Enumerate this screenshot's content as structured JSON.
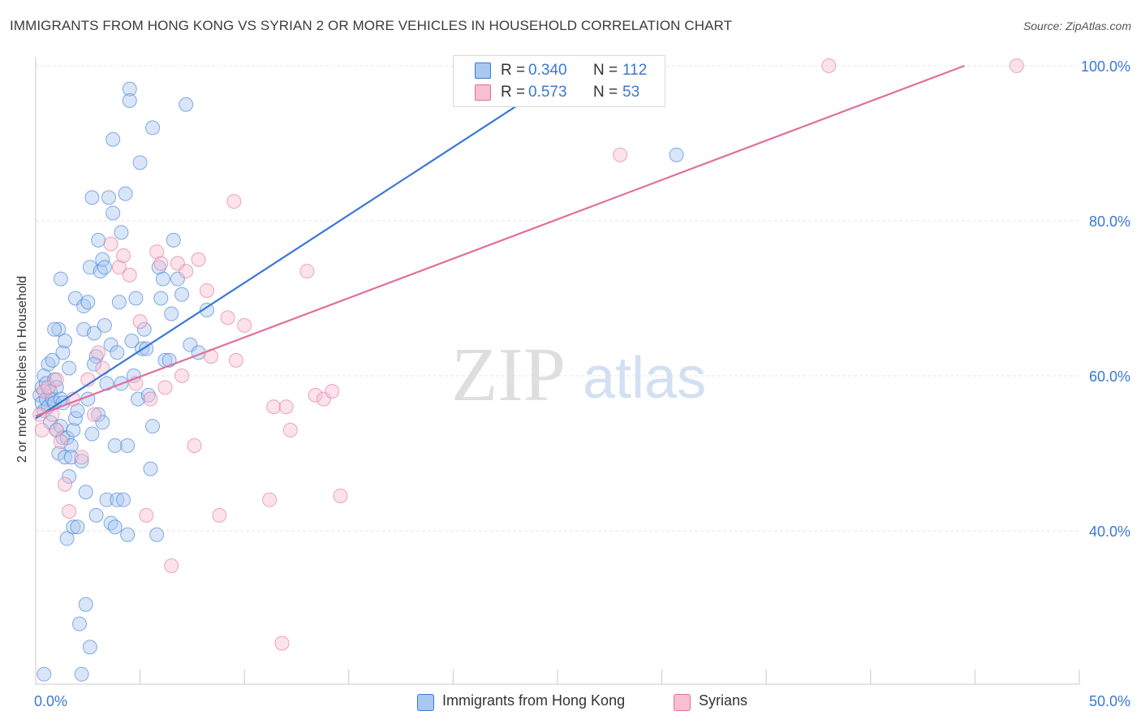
{
  "title": "IMMIGRANTS FROM HONG KONG VS SYRIAN 2 OR MORE VEHICLES IN HOUSEHOLD CORRELATION CHART",
  "source": "Source: ZipAtlas.com",
  "watermark": {
    "zip": "ZIP",
    "atlas": "atlas"
  },
  "colors": {
    "blue": "#3a78d4",
    "blue_fill": "#a9c8f0",
    "pink": "#e0709a",
    "pink_fill": "#f6bfd2",
    "axis_text": "#3a78d4",
    "grid": "#e4e4e4"
  },
  "legend_top": {
    "rows": [
      {
        "series": "blue",
        "r_label": "R =",
        "r_value": "0.340",
        "n_label": "N =",
        "n_value": "112"
      },
      {
        "series": "pink",
        "r_label": "R =",
        "r_value": "0.573",
        "n_label": "N =",
        "n_value": "53"
      }
    ]
  },
  "legend_bottom": [
    {
      "series": "blue",
      "label": "Immigrants from Hong Kong"
    },
    {
      "series": "pink",
      "label": "Syrians"
    }
  ],
  "chart_data": {
    "type": "scatter",
    "title": "IMMIGRANTS FROM HONG KONG VS SYRIAN 2 OR MORE VEHICLES IN HOUSEHOLD CORRELATION CHART",
    "xlabel": "",
    "ylabel": "2 or more Vehicles in Household",
    "xlim": [
      0,
      50
    ],
    "ylim": [
      20,
      101.7
    ],
    "x_tick_labels": [
      {
        "value": 0,
        "label": "0.0%"
      },
      {
        "value": 50,
        "label": "50.0%"
      }
    ],
    "y_tick_labels": [
      {
        "value": 40,
        "label": "40.0%"
      },
      {
        "value": 60,
        "label": "60.0%"
      },
      {
        "value": 80,
        "label": "80.0%"
      },
      {
        "value": 100,
        "label": "100.0%"
      }
    ],
    "grid": true,
    "series": [
      {
        "name": "Immigrants from Hong Kong",
        "color": "blue",
        "trend": {
          "x0": 0,
          "y0": 54.5,
          "x1": 26,
          "y1": 100
        },
        "points": [
          [
            0.2,
            57.5
          ],
          [
            0.3,
            56.5
          ],
          [
            0.3,
            58.5
          ],
          [
            0.4,
            55.5
          ],
          [
            0.4,
            60.0
          ],
          [
            0.5,
            57.0
          ],
          [
            0.5,
            59.0
          ],
          [
            0.6,
            61.5
          ],
          [
            0.6,
            56.0
          ],
          [
            0.7,
            58.0
          ],
          [
            0.7,
            54.0
          ],
          [
            0.8,
            62.0
          ],
          [
            0.8,
            57.0
          ],
          [
            0.9,
            59.5
          ],
          [
            0.9,
            56.5
          ],
          [
            1.0,
            58.5
          ],
          [
            1.0,
            53.0
          ],
          [
            1.1,
            50.0
          ],
          [
            1.1,
            66.0
          ],
          [
            1.2,
            57.0
          ],
          [
            1.2,
            53.5
          ],
          [
            1.2,
            72.5
          ],
          [
            1.3,
            63.0
          ],
          [
            1.3,
            52.0
          ],
          [
            1.4,
            64.5
          ],
          [
            1.4,
            49.5
          ],
          [
            1.5,
            39.0
          ],
          [
            1.5,
            52.0
          ],
          [
            1.6,
            61.0
          ],
          [
            1.7,
            51.0
          ],
          [
            1.7,
            49.5
          ],
          [
            1.8,
            53.0
          ],
          [
            1.8,
            40.5
          ],
          [
            1.9,
            70.0
          ],
          [
            1.9,
            54.5
          ],
          [
            2.0,
            55.5
          ],
          [
            2.0,
            40.5
          ],
          [
            2.1,
            28.0
          ],
          [
            2.2,
            49.0
          ],
          [
            2.2,
            21.5
          ],
          [
            2.3,
            69.0
          ],
          [
            2.3,
            66.0
          ],
          [
            2.4,
            30.5
          ],
          [
            2.4,
            45.0
          ],
          [
            2.5,
            69.5
          ],
          [
            2.5,
            57.0
          ],
          [
            2.6,
            74.0
          ],
          [
            2.6,
            25.0
          ],
          [
            2.7,
            83.0
          ],
          [
            2.7,
            52.5
          ],
          [
            2.8,
            65.5
          ],
          [
            2.9,
            62.5
          ],
          [
            2.9,
            42.0
          ],
          [
            3.0,
            77.5
          ],
          [
            3.1,
            73.5
          ],
          [
            3.2,
            75.0
          ],
          [
            3.3,
            66.5
          ],
          [
            3.3,
            74.0
          ],
          [
            3.4,
            44.0
          ],
          [
            3.5,
            83.0
          ],
          [
            3.6,
            64.0
          ],
          [
            3.6,
            41.0
          ],
          [
            3.7,
            81.0
          ],
          [
            3.7,
            90.5
          ],
          [
            3.8,
            51.0
          ],
          [
            3.8,
            40.5
          ],
          [
            3.9,
            63.0
          ],
          [
            3.9,
            44.0
          ],
          [
            4.0,
            69.5
          ],
          [
            4.1,
            78.5
          ],
          [
            4.1,
            59.0
          ],
          [
            4.2,
            44.0
          ],
          [
            4.3,
            83.5
          ],
          [
            4.4,
            51.0
          ],
          [
            4.4,
            39.5
          ],
          [
            4.5,
            97.0
          ],
          [
            4.5,
            95.5
          ],
          [
            4.6,
            64.5
          ],
          [
            4.7,
            60.0
          ],
          [
            4.8,
            70.0
          ],
          [
            4.9,
            57.0
          ],
          [
            5.0,
            87.5
          ],
          [
            5.1,
            63.5
          ],
          [
            5.2,
            66.0
          ],
          [
            5.3,
            63.5
          ],
          [
            5.4,
            57.5
          ],
          [
            5.5,
            48.0
          ],
          [
            5.6,
            53.5
          ],
          [
            5.6,
            92.0
          ],
          [
            5.8,
            39.5
          ],
          [
            5.9,
            74.0
          ],
          [
            6.0,
            70.0
          ],
          [
            6.1,
            72.5
          ],
          [
            6.2,
            62.0
          ],
          [
            6.4,
            62.0
          ],
          [
            6.5,
            68.0
          ],
          [
            6.6,
            77.5
          ],
          [
            6.8,
            72.5
          ],
          [
            7.0,
            70.5
          ],
          [
            7.2,
            95.0
          ],
          [
            7.4,
            64.0
          ],
          [
            7.8,
            63.0
          ],
          [
            8.2,
            68.5
          ],
          [
            0.4,
            21.5
          ],
          [
            0.9,
            66.0
          ],
          [
            1.6,
            47.0
          ],
          [
            2.8,
            61.5
          ],
          [
            3.0,
            55.0
          ],
          [
            3.4,
            59.0
          ],
          [
            30.7,
            88.5
          ],
          [
            3.2,
            54.0
          ],
          [
            1.3,
            56.5
          ]
        ]
      },
      {
        "name": "Syrians",
        "color": "pink",
        "trend": {
          "x0": 0,
          "y0": 54.8,
          "x1": 44.5,
          "y1": 100
        },
        "points": [
          [
            0.2,
            55.0
          ],
          [
            0.3,
            53.0
          ],
          [
            0.4,
            58.0
          ],
          [
            0.6,
            58.5
          ],
          [
            0.8,
            55.0
          ],
          [
            1.0,
            59.5
          ],
          [
            1.0,
            53.0
          ],
          [
            1.2,
            51.5
          ],
          [
            1.4,
            46.0
          ],
          [
            1.6,
            42.5
          ],
          [
            1.8,
            57.0
          ],
          [
            2.2,
            49.5
          ],
          [
            2.5,
            59.5
          ],
          [
            2.8,
            55.0
          ],
          [
            3.0,
            63.0
          ],
          [
            3.2,
            61.0
          ],
          [
            3.6,
            77.0
          ],
          [
            4.0,
            74.0
          ],
          [
            4.2,
            75.5
          ],
          [
            4.5,
            73.0
          ],
          [
            4.8,
            59.0
          ],
          [
            5.0,
            67.0
          ],
          [
            5.3,
            42.0
          ],
          [
            5.5,
            57.0
          ],
          [
            5.8,
            76.0
          ],
          [
            6.0,
            74.5
          ],
          [
            6.2,
            58.5
          ],
          [
            6.5,
            35.5
          ],
          [
            6.8,
            74.5
          ],
          [
            7.0,
            60.0
          ],
          [
            7.2,
            73.5
          ],
          [
            7.6,
            51.0
          ],
          [
            7.8,
            75.0
          ],
          [
            8.2,
            71.0
          ],
          [
            8.4,
            62.5
          ],
          [
            8.8,
            42.0
          ],
          [
            9.2,
            67.5
          ],
          [
            9.5,
            82.5
          ],
          [
            9.6,
            62.0
          ],
          [
            10.0,
            66.5
          ],
          [
            11.2,
            44.0
          ],
          [
            11.4,
            56.0
          ],
          [
            11.8,
            25.5
          ],
          [
            12.0,
            56.0
          ],
          [
            12.2,
            53.0
          ],
          [
            13.0,
            73.5
          ],
          [
            13.4,
            57.5
          ],
          [
            13.8,
            57.0
          ],
          [
            14.2,
            58.0
          ],
          [
            14.6,
            44.5
          ],
          [
            28.0,
            88.5
          ],
          [
            38.0,
            100.0
          ],
          [
            47.0,
            100.0
          ]
        ]
      }
    ]
  }
}
